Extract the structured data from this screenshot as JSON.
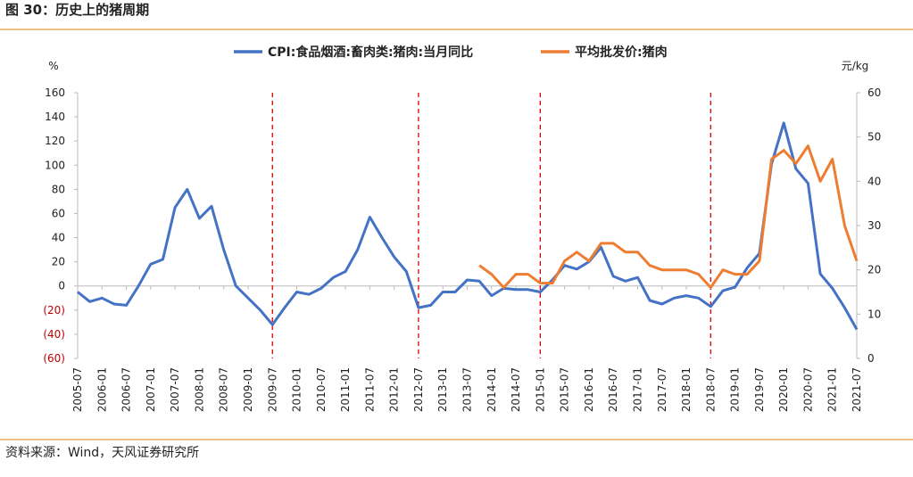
{
  "chart_data": {
    "type": "line",
    "title": "图 30：历史上的猪周期",
    "source": "资料来源：Wind，天风证券研究所",
    "y_label": "%",
    "y2_label": "元/kg",
    "categories": [
      "2005-07",
      null,
      "2006-01",
      null,
      "2006-07",
      null,
      "2007-01",
      null,
      "2007-07",
      null,
      "2008-01",
      null,
      "2008-07",
      null,
      "2009-01",
      null,
      "2009-07",
      null,
      "2010-01",
      null,
      "2010-07",
      null,
      "2011-01",
      null,
      "2011-07",
      null,
      "2012-01",
      null,
      "2012-07",
      null,
      "2013-01",
      null,
      "2013-07",
      null,
      "2014-01",
      null,
      "2014-07",
      null,
      "2015-01",
      null,
      "2015-07",
      null,
      "2016-01",
      null,
      "2016-07",
      null,
      "2017-01",
      null,
      "2017-07",
      null,
      "2018-01",
      null,
      "2018-07",
      null,
      "2019-01",
      null,
      "2019-07",
      null,
      "2020-01",
      null,
      "2020-07",
      null,
      "2021-01",
      null,
      "2021-07"
    ],
    "series": [
      {
        "name": "CPI:食品烟酒:畜肉类:猪肉:当月同比",
        "color": "#4472c4",
        "values": [
          -5,
          -13,
          -10,
          -15,
          -16,
          0,
          18,
          22,
          65,
          80,
          56,
          66,
          30,
          0,
          -10,
          -20,
          -32,
          -18,
          -5,
          -7,
          -2,
          7,
          12,
          30,
          57,
          40,
          24,
          12,
          -18,
          -16,
          -5,
          -5,
          5,
          4,
          -8,
          -2,
          -3,
          -3,
          -5,
          5,
          17,
          14,
          20,
          32,
          8,
          4,
          7,
          -12,
          -15,
          -10,
          -8,
          -10,
          -17,
          -4,
          -1,
          15,
          27,
          101,
          135,
          97,
          85,
          10,
          -2,
          -18,
          -36
        ]
      },
      {
        "name": "平均批发价:猪肉",
        "color": "#ed7d31",
        "axis": "y2",
        "values": [
          null,
          null,
          null,
          null,
          null,
          null,
          null,
          null,
          null,
          null,
          null,
          null,
          null,
          null,
          null,
          null,
          null,
          null,
          null,
          null,
          null,
          null,
          null,
          null,
          null,
          null,
          null,
          null,
          null,
          null,
          null,
          null,
          null,
          21,
          19,
          16,
          19,
          19,
          17,
          17,
          22,
          24,
          22,
          26,
          26,
          24,
          24,
          21,
          20,
          20,
          20,
          19,
          16,
          20,
          19,
          19,
          22,
          45,
          47,
          44,
          48,
          40,
          45,
          30,
          22
        ]
      }
    ],
    "vlines": [
      "2009-07",
      "2012-07",
      "2015-01",
      "2018-07"
    ],
    "vline_color": "#e00000",
    "ylim": [
      -60,
      160
    ],
    "yticks": [
      {
        "value": -60,
        "label": "(60)"
      },
      {
        "value": -40,
        "label": "(40)"
      },
      {
        "value": -20,
        "label": "(20)"
      },
      0,
      20,
      40,
      60,
      80,
      100,
      120,
      140,
      160
    ],
    "negative_tick_color": "#c00000",
    "y2lim": [
      0,
      60
    ],
    "y2ticks": [
      0,
      10,
      20,
      30,
      40,
      50,
      60
    ],
    "legend": "top"
  }
}
